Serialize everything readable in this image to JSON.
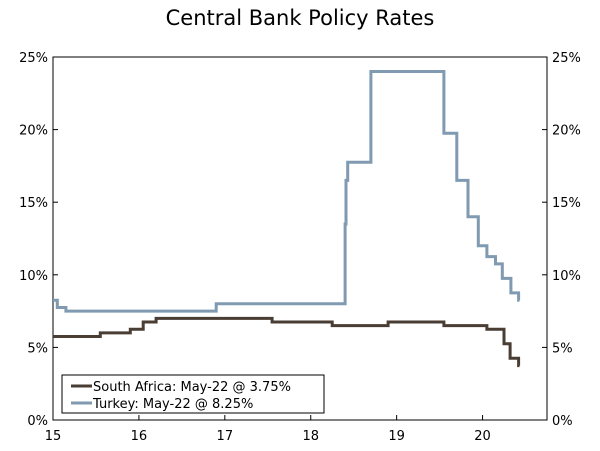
{
  "chart_data": {
    "type": "line",
    "title": "Central Bank Policy Rates",
    "xlabel": "",
    "ylabel": "",
    "xlim": [
      2015,
      2020.75
    ],
    "ylim": [
      0,
      25
    ],
    "x_ticks": [
      {
        "value": 2015,
        "label": "15"
      },
      {
        "value": 2016,
        "label": "16"
      },
      {
        "value": 2017,
        "label": "17"
      },
      {
        "value": 2018,
        "label": "18"
      },
      {
        "value": 2019,
        "label": "19"
      },
      {
        "value": 2020,
        "label": "20"
      }
    ],
    "y_ticks": [
      {
        "value": 0,
        "label": "0%"
      },
      {
        "value": 5,
        "label": "5%"
      },
      {
        "value": 10,
        "label": "10%"
      },
      {
        "value": 15,
        "label": "15%"
      },
      {
        "value": 20,
        "label": "20%"
      },
      {
        "value": 25,
        "label": "25%"
      }
    ],
    "y_axes": [
      "left",
      "right"
    ],
    "grid": false,
    "step": true,
    "legend_position": "bottom-left",
    "series": [
      {
        "name": "South Africa: May-22 @ 3.75%",
        "color": "#4a3d34",
        "points": [
          [
            2015.0,
            5.75
          ],
          [
            2015.55,
            6.0
          ],
          [
            2015.9,
            6.25
          ],
          [
            2016.05,
            6.75
          ],
          [
            2016.2,
            7.0
          ],
          [
            2017.55,
            6.75
          ],
          [
            2018.25,
            6.5
          ],
          [
            2018.9,
            6.75
          ],
          [
            2019.55,
            6.5
          ],
          [
            2020.05,
            6.25
          ],
          [
            2020.25,
            5.25
          ],
          [
            2020.32,
            4.25
          ],
          [
            2020.42,
            3.75
          ],
          [
            2020.43,
            3.75
          ]
        ]
      },
      {
        "name": "Turkey: May-22 @ 8.25%",
        "color": "#7f9ab1",
        "points": [
          [
            2015.0,
            8.25
          ],
          [
            2015.05,
            7.75
          ],
          [
            2015.15,
            7.5
          ],
          [
            2016.9,
            8.0
          ],
          [
            2018.4,
            13.5
          ],
          [
            2018.41,
            16.5
          ],
          [
            2018.43,
            17.75
          ],
          [
            2018.7,
            24.0
          ],
          [
            2019.55,
            19.75
          ],
          [
            2019.7,
            16.5
          ],
          [
            2019.83,
            14.0
          ],
          [
            2019.95,
            12.0
          ],
          [
            2020.05,
            11.25
          ],
          [
            2020.15,
            10.75
          ],
          [
            2020.23,
            9.75
          ],
          [
            2020.33,
            8.75
          ],
          [
            2020.42,
            8.25
          ],
          [
            2020.43,
            8.25
          ]
        ]
      }
    ]
  }
}
